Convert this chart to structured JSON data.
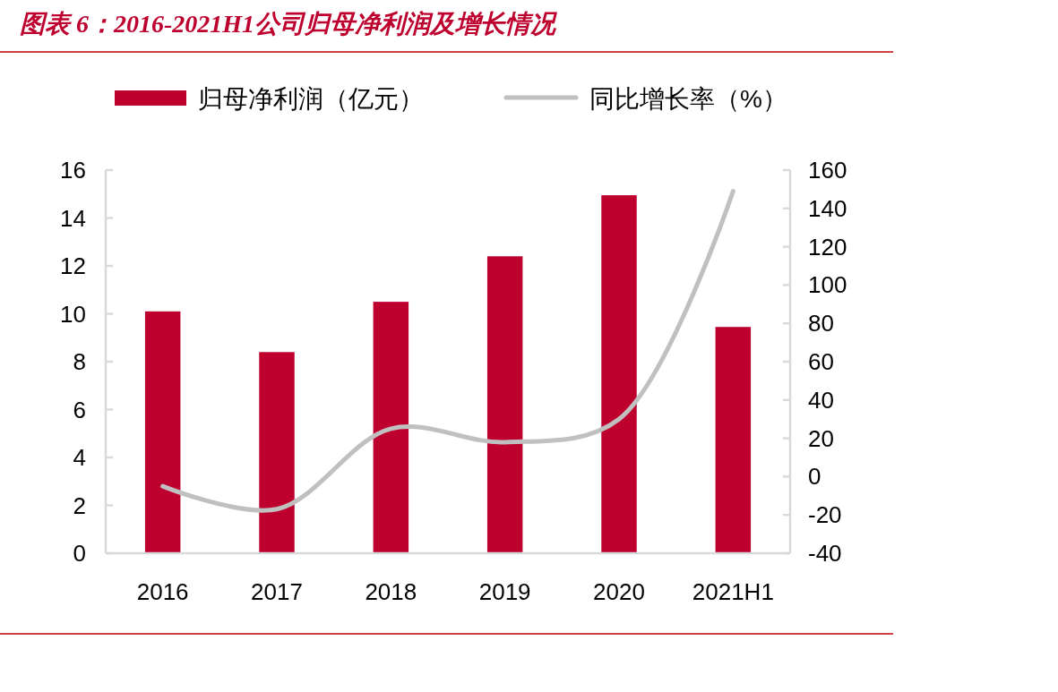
{
  "chart_data": {
    "type": "bar",
    "title": "图表 6：2016-2021H1公司归母净利润及增长情况",
    "categories": [
      "2016",
      "2017",
      "2018",
      "2019",
      "2020",
      "2021H1"
    ],
    "series": [
      {
        "name": "归母净利润（亿元）",
        "color": "#be002f",
        "values": [
          10.1,
          8.4,
          10.5,
          12.4,
          14.95,
          9.45
        ]
      },
      {
        "name": "同比增长率（%）",
        "type": "line",
        "axis": "y2",
        "color": "#c0c0c0",
        "values": [
          -5,
          -17,
          25,
          18,
          30,
          149
        ]
      }
    ],
    "ylim": [
      0,
      16
    ],
    "yticks": [
      0,
      2,
      4,
      6,
      8,
      10,
      12,
      14,
      16
    ],
    "y2lim": [
      -40,
      160
    ],
    "y2ticks": [
      -40,
      -20,
      0,
      20,
      40,
      60,
      80,
      100,
      120,
      140,
      160
    ],
    "legend": "top",
    "grid": false
  }
}
